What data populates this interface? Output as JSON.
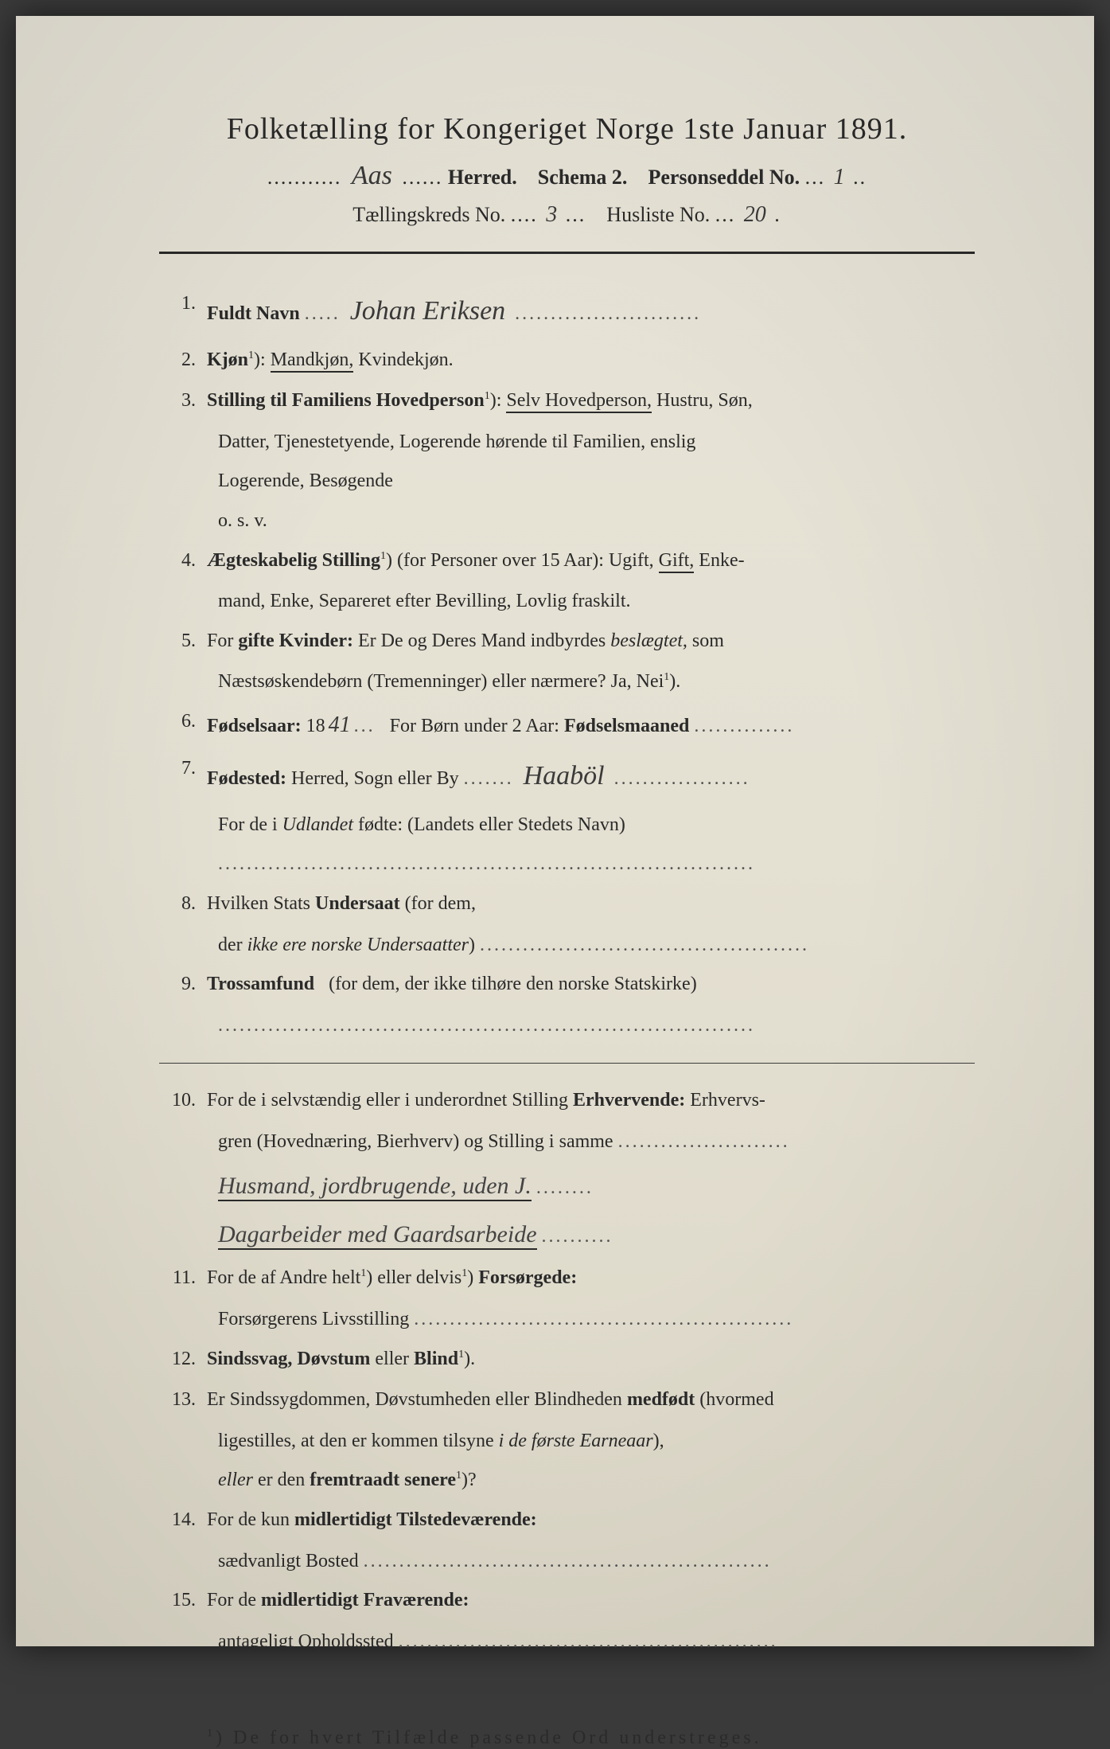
{
  "header": {
    "title": "Folketælling for Kongeriget Norge 1ste Januar 1891.",
    "herred_hw": "Aas",
    "herred_label": "Herred.",
    "schema_label": "Schema 2.",
    "personseddel_label": "Personseddel No.",
    "personseddel_hw": "1",
    "kreds_label": "Tællingskreds No.",
    "kreds_hw": "3",
    "husliste_label": "Husliste No.",
    "husliste_hw": "20"
  },
  "q1": {
    "num": "1.",
    "label": "Fuldt Navn",
    "value_hw": "Johan Eriksen"
  },
  "q2": {
    "num": "2.",
    "label_bold": "Kjøn",
    "sup": "1",
    "underlined": "Mandkjøn,",
    "rest": "Kvindekjøn."
  },
  "q3": {
    "num": "3.",
    "label": "Stilling til Familiens Hovedperson",
    "sup": "1",
    "underlined": "Selv Hovedperson,",
    "rest1": "Hustru, Søn,",
    "line2": "Datter, Tjenestetyende, Logerende hørende til Familien, enslig",
    "line3": "Logerende, Besøgende",
    "line4": "o. s. v."
  },
  "q4": {
    "num": "4.",
    "label": "Ægteskabelig Stilling",
    "sup": "1",
    "paren": "(for Personer over 15 Aar):",
    "text1": "Ugift,",
    "underlined": "Gift,",
    "text2": "Enke-",
    "line2": "mand, Enke, Separeret efter Bevilling, Lovlig fraskilt."
  },
  "q5": {
    "num": "5.",
    "text1": "For",
    "bold1": "gifte Kvinder:",
    "text2": "Er De og Deres Mand indbyrdes",
    "italic1": "beslægtet,",
    "text3": "som",
    "line2": "Næstsøskendebørn (Tremenninger) eller nærmere?  Ja, Nei",
    "sup": "1"
  },
  "q6": {
    "num": "6.",
    "label": "Fødselsaar:",
    "prefix": "18",
    "year_hw": "41",
    "text2": "For Børn under 2 Aar:",
    "bold2": "Fødselsmaaned"
  },
  "q7": {
    "num": "7.",
    "label": "Fødested:",
    "text1": "Herred, Sogn eller By",
    "place_hw": "Haaböl",
    "line2a": "For de i",
    "line2b": "Udlandet",
    "line2c": "fødte: (Landets eller Stedets Navn)"
  },
  "q8": {
    "num": "8.",
    "text1": "Hvilken Stats",
    "bold1": "Undersaat",
    "text2": "(for dem,",
    "line2": "der",
    "italic1": "ikke ere norske Undersaatter"
  },
  "q9": {
    "num": "9.",
    "bold1": "Trossamfund",
    "text1": "(for  dem,  der  ikke  tilhøre  den  norske  Statskirke)"
  },
  "q10": {
    "num": "10.",
    "text1": "For de i selvstændig eller i underordnet Stilling",
    "bold1": "Erhvervende:",
    "text2": "Erhvervs-",
    "line2": "gren (Hovednæring, Bierhverv) og Stilling i samme",
    "hw1": "Husmand, jordbrugende, uden J.",
    "hw2": "Dagarbeider med Gaardsarbeide"
  },
  "q11": {
    "num": "11.",
    "text1": "For de af Andre helt",
    "sup1": "1",
    "text2": "eller delvis",
    "sup2": "1",
    "bold1": "Forsørgede:",
    "line2": "Forsørgerens Livsstilling"
  },
  "q12": {
    "num": "12.",
    "bold1": "Sindssvag, Døvstum",
    "text1": "eller",
    "bold2": "Blind",
    "sup": "1"
  },
  "q13": {
    "num": "13.",
    "text1": "Er Sindssygdommen, Døvstumheden eller Blindheden",
    "bold1": "medfødt",
    "text2": "(hvormed",
    "line2a": "ligestilles, at den er kommen tilsyne",
    "italic1": "i de første Earneaar",
    "line2b": "),",
    "line3a": "eller",
    "line3b": "er den",
    "bold2": "fremtraadt senere",
    "sup": "1",
    "line3c": "?"
  },
  "q14": {
    "num": "14.",
    "text1": "For de kun",
    "bold1": "midlertidigt Tilstedeværende:",
    "line2": "sædvanligt Bosted"
  },
  "q15": {
    "num": "15.",
    "text1": "For de",
    "bold1": "midlertidigt Fraværende:",
    "line2": "antageligt Opholdssted"
  },
  "footnote": {
    "sup": "1",
    "text": ") De for hvert Tilfælde passende Ord understreges."
  }
}
